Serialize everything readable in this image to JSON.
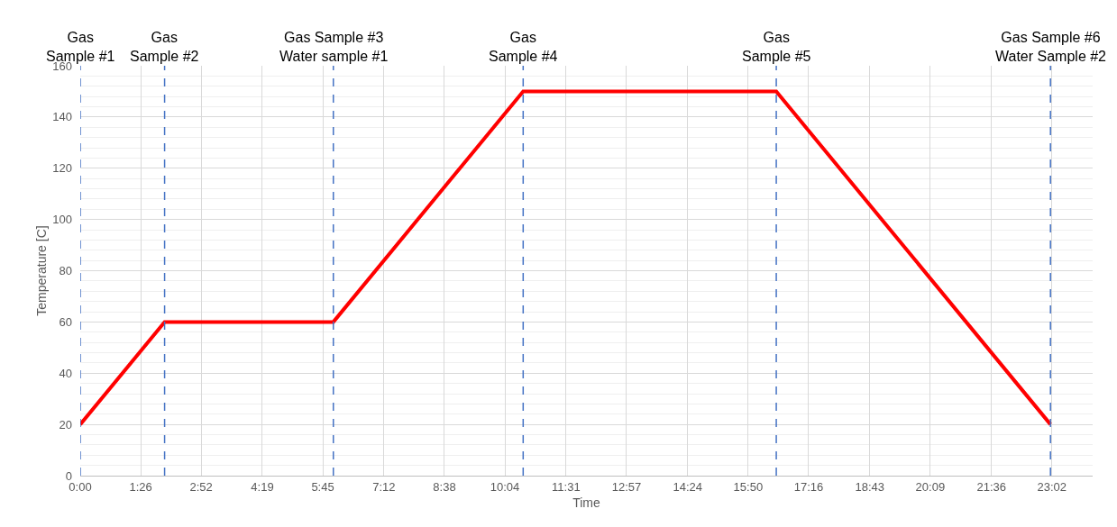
{
  "chart_data": {
    "type": "line",
    "xlabel": "Time",
    "ylabel": "Temperature [C]",
    "x": [
      0,
      2,
      6,
      10.5,
      16.5,
      23
    ],
    "series": [
      {
        "color": "#ff0000",
        "values": [
          20,
          60,
          60,
          150,
          150,
          20
        ]
      }
    ],
    "xlim": [
      0,
      24
    ],
    "xticks": [
      {
        "value": 0,
        "label": "0:00"
      },
      {
        "value": 1.4333,
        "label": "1:26"
      },
      {
        "value": 2.8667,
        "label": "2:52"
      },
      {
        "value": 4.3167,
        "label": "4:19"
      },
      {
        "value": 5.75,
        "label": "5:45"
      },
      {
        "value": 7.2,
        "label": "7:12"
      },
      {
        "value": 8.6333,
        "label": "8:38"
      },
      {
        "value": 10.0667,
        "label": "10:04"
      },
      {
        "value": 11.5167,
        "label": "11:31"
      },
      {
        "value": 12.95,
        "label": "12:57"
      },
      {
        "value": 14.4,
        "label": "14:24"
      },
      {
        "value": 15.8333,
        "label": "15:50"
      },
      {
        "value": 17.2667,
        "label": "17:16"
      },
      {
        "value": 18.7167,
        "label": "18:43"
      },
      {
        "value": 20.15,
        "label": "20:09"
      },
      {
        "value": 21.6,
        "label": "21:36"
      },
      {
        "value": 23.0333,
        "label": "23:02"
      }
    ],
    "ylim": [
      0,
      160
    ],
    "yticks": [
      0,
      20,
      40,
      60,
      80,
      100,
      120,
      140,
      160
    ],
    "grid": true,
    "marker": "none",
    "line_style": "solid",
    "ref_lines": [
      {
        "axis": "x",
        "value": 0,
        "label": "Gas\nSample #1",
        "color": "#4472c4",
        "line_style": "dashed"
      },
      {
        "axis": "x",
        "value": 2,
        "label": "Gas\nSample #2",
        "color": "#4472c4",
        "line_style": "dashed"
      },
      {
        "axis": "x",
        "value": 6,
        "label": "Gas Sample #3\nWater sample #1",
        "color": "#4472c4",
        "line_style": "dashed"
      },
      {
        "axis": "x",
        "value": 10.5,
        "label": "Gas\nSample #4",
        "color": "#4472c4",
        "line_style": "dashed"
      },
      {
        "axis": "x",
        "value": 16.5,
        "label": "Gas\nSample #5",
        "color": "#4472c4",
        "line_style": "dashed"
      },
      {
        "axis": "x",
        "value": 23,
        "label": "Gas Sample #6\nWater Sample #2",
        "color": "#4472c4",
        "line_style": "dashed"
      }
    ]
  }
}
